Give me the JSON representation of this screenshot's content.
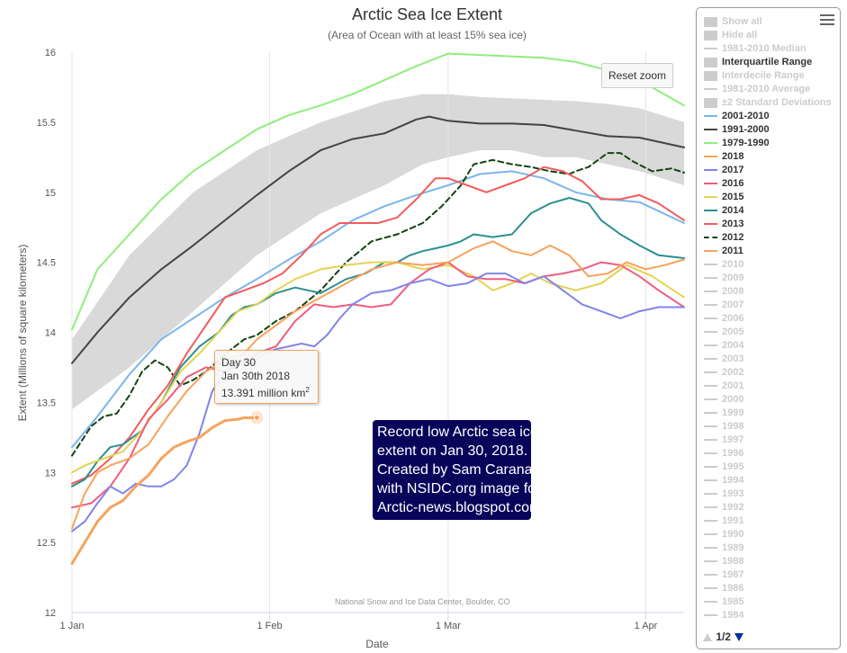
{
  "header": {
    "title": "Arctic Sea Ice Extent",
    "subtitle": "(Area of Ocean with at least 15% sea ice)"
  },
  "reset_zoom_label": "Reset zoom",
  "credits": "National Snow and Ice Data Center, Boulder, CO",
  "tooltip": {
    "day": "Day 30",
    "date": "Jan 30th 2018",
    "value": "13.391 million km",
    "unit_sup": "2"
  },
  "annotation": {
    "lines": [
      "Record low Arctic sea ice",
      "extent on Jan 30, 2018.",
      "Created by Sam Carana",
      "with NSIDC.org image for",
      "Arctic-news.blogspot.com"
    ]
  },
  "legend": {
    "items": [
      {
        "label": "Show all",
        "kind": "box",
        "color": "#cccccc",
        "active": false
      },
      {
        "label": "Hide all",
        "kind": "box",
        "color": "#cccccc",
        "active": false
      },
      {
        "label": "1981-2010 Median",
        "kind": "line",
        "color": "#cccccc",
        "active": false
      },
      {
        "label": "Interquartile Range",
        "kind": "box",
        "color": "#cccccc",
        "active": true
      },
      {
        "label": "Interdecile Range",
        "kind": "box",
        "color": "#cccccc",
        "active": false
      },
      {
        "label": "1981-2010 Average",
        "kind": "line",
        "color": "#cccccc",
        "active": false
      },
      {
        "label": "±2 Standard Deviations",
        "kind": "box",
        "color": "#cccccc",
        "active": false
      },
      {
        "label": "2001-2010",
        "kind": "line",
        "color": "#7cb5ec",
        "active": true
      },
      {
        "label": "1991-2000",
        "kind": "line",
        "color": "#434348",
        "active": true
      },
      {
        "label": "1979-1990",
        "kind": "line",
        "color": "#90ed7d",
        "active": true
      },
      {
        "label": "2018",
        "kind": "line",
        "color": "#f7a35c",
        "active": true
      },
      {
        "label": "2017",
        "kind": "line",
        "color": "#8085e9",
        "active": true
      },
      {
        "label": "2016",
        "kind": "line",
        "color": "#f15c80",
        "active": true
      },
      {
        "label": "2015",
        "kind": "line",
        "color": "#e4d354",
        "active": true
      },
      {
        "label": "2014",
        "kind": "line",
        "color": "#2b908f",
        "active": true
      },
      {
        "label": "2013",
        "kind": "line",
        "color": "#f45b5b",
        "active": true
      },
      {
        "label": "2012",
        "kind": "dash",
        "color": "#114411",
        "active": true
      },
      {
        "label": "2011",
        "kind": "line",
        "color": "#f7a35c",
        "active": true
      },
      {
        "label": "2010",
        "kind": "line",
        "color": "#cccccc",
        "active": false
      },
      {
        "label": "2009",
        "kind": "line",
        "color": "#cccccc",
        "active": false
      },
      {
        "label": "2008",
        "kind": "line",
        "color": "#cccccc",
        "active": false
      },
      {
        "label": "2007",
        "kind": "line",
        "color": "#cccccc",
        "active": false
      },
      {
        "label": "2006",
        "kind": "line",
        "color": "#cccccc",
        "active": false
      },
      {
        "label": "2005",
        "kind": "line",
        "color": "#cccccc",
        "active": false
      },
      {
        "label": "2004",
        "kind": "line",
        "color": "#cccccc",
        "active": false
      },
      {
        "label": "2003",
        "kind": "line",
        "color": "#cccccc",
        "active": false
      },
      {
        "label": "2002",
        "kind": "line",
        "color": "#cccccc",
        "active": false
      },
      {
        "label": "2001",
        "kind": "line",
        "color": "#cccccc",
        "active": false
      },
      {
        "label": "2000",
        "kind": "line",
        "color": "#cccccc",
        "active": false
      },
      {
        "label": "1999",
        "kind": "line",
        "color": "#cccccc",
        "active": false
      },
      {
        "label": "1998",
        "kind": "line",
        "color": "#cccccc",
        "active": false
      },
      {
        "label": "1997",
        "kind": "line",
        "color": "#cccccc",
        "active": false
      },
      {
        "label": "1996",
        "kind": "line",
        "color": "#cccccc",
        "active": false
      },
      {
        "label": "1995",
        "kind": "line",
        "color": "#cccccc",
        "active": false
      },
      {
        "label": "1994",
        "kind": "line",
        "color": "#cccccc",
        "active": false
      },
      {
        "label": "1993",
        "kind": "line",
        "color": "#cccccc",
        "active": false
      },
      {
        "label": "1992",
        "kind": "line",
        "color": "#cccccc",
        "active": false
      },
      {
        "label": "1991",
        "kind": "line",
        "color": "#cccccc",
        "active": false
      },
      {
        "label": "1990",
        "kind": "line",
        "color": "#cccccc",
        "active": false
      },
      {
        "label": "1989",
        "kind": "line",
        "color": "#cccccc",
        "active": false
      },
      {
        "label": "1988",
        "kind": "line",
        "color": "#cccccc",
        "active": false
      },
      {
        "label": "1987",
        "kind": "line",
        "color": "#cccccc",
        "active": false
      },
      {
        "label": "1986",
        "kind": "line",
        "color": "#cccccc",
        "active": false
      },
      {
        "label": "1985",
        "kind": "line",
        "color": "#cccccc",
        "active": false
      },
      {
        "label": "1984",
        "kind": "line",
        "color": "#cccccc",
        "active": false
      }
    ],
    "page": "1/2"
  },
  "chart_data": {
    "type": "line",
    "title": "Arctic Sea Ice Extent",
    "subtitle": "(Area of Ocean with at least 15% sea ice)",
    "xlabel": "Date",
    "ylabel": "Extent (Millions of square kilometers)",
    "xlim": [
      1,
      97
    ],
    "ylim": [
      12,
      16
    ],
    "yticks": [
      12,
      12.5,
      13,
      13.5,
      14,
      14.5,
      15,
      15.5,
      16
    ],
    "xticks": [
      {
        "x": 1,
        "label": "1 Jan"
      },
      {
        "x": 32,
        "label": "1 Feb"
      },
      {
        "x": 60,
        "label": "1 Mar"
      },
      {
        "x": 91,
        "label": "1 Apr"
      }
    ],
    "grid": "x",
    "legend_position": "right",
    "highlight": {
      "series": "2018",
      "x": 30,
      "y": 13.391
    },
    "band": {
      "name": "Interquartile Range",
      "color": "#d9d9d9",
      "x": [
        1,
        10,
        20,
        30,
        40,
        50,
        56,
        60,
        65,
        70,
        75,
        80,
        85,
        90,
        97
      ],
      "low": [
        13.45,
        13.75,
        14.15,
        14.55,
        14.85,
        15.05,
        15.2,
        15.25,
        15.3,
        15.3,
        15.25,
        15.25,
        15.2,
        15.15,
        15.05
      ],
      "high": [
        13.95,
        14.55,
        15.0,
        15.3,
        15.5,
        15.65,
        15.7,
        15.7,
        15.68,
        15.67,
        15.66,
        15.65,
        15.63,
        15.6,
        15.5
      ]
    },
    "series": [
      {
        "name": "1979-1990",
        "color": "#90ed7d",
        "dash": false,
        "x": [
          1,
          5,
          10,
          15,
          20,
          25,
          30,
          35,
          40,
          45,
          50,
          55,
          60,
          65,
          70,
          75,
          80,
          85,
          90,
          97
        ],
        "y": [
          14.02,
          14.45,
          14.7,
          14.95,
          15.15,
          15.3,
          15.45,
          15.55,
          15.62,
          15.7,
          15.8,
          15.9,
          15.99,
          15.98,
          15.97,
          15.96,
          15.93,
          15.87,
          15.8,
          15.62
        ]
      },
      {
        "name": "1991-2000",
        "color": "#434348",
        "dash": false,
        "x": [
          1,
          5,
          10,
          15,
          20,
          25,
          30,
          35,
          40,
          45,
          50,
          55,
          57,
          60,
          65,
          70,
          75,
          80,
          85,
          90,
          97
        ],
        "y": [
          13.78,
          14.0,
          14.25,
          14.45,
          14.62,
          14.8,
          14.98,
          15.15,
          15.3,
          15.38,
          15.42,
          15.52,
          15.54,
          15.51,
          15.49,
          15.49,
          15.48,
          15.44,
          15.4,
          15.39,
          15.32
        ]
      },
      {
        "name": "2001-2010",
        "color": "#7cb5ec",
        "dash": false,
        "x": [
          1,
          5,
          10,
          15,
          20,
          25,
          30,
          35,
          40,
          45,
          50,
          55,
          60,
          65,
          70,
          75,
          80,
          85,
          90,
          97
        ],
        "y": [
          13.18,
          13.4,
          13.7,
          13.95,
          14.1,
          14.25,
          14.38,
          14.52,
          14.65,
          14.8,
          14.9,
          14.98,
          15.05,
          15.13,
          15.15,
          15.1,
          15.0,
          14.95,
          14.93,
          14.78
        ]
      },
      {
        "name": "2012",
        "color": "#114411",
        "dash": true,
        "x": [
          1,
          4,
          6,
          8,
          10,
          12,
          14,
          16,
          18,
          20,
          22,
          24,
          26,
          28,
          30,
          33,
          36,
          40,
          44,
          48,
          52,
          56,
          59,
          62,
          64,
          67,
          70,
          73,
          76,
          79,
          80,
          82,
          85,
          87,
          89,
          92,
          95,
          97
        ],
        "y": [
          13.12,
          13.33,
          13.4,
          13.42,
          13.55,
          13.72,
          13.8,
          13.75,
          13.62,
          13.66,
          13.72,
          13.8,
          13.88,
          13.95,
          13.98,
          14.08,
          14.15,
          14.3,
          14.5,
          14.65,
          14.7,
          14.78,
          14.9,
          15.05,
          15.2,
          15.23,
          15.2,
          15.18,
          15.15,
          15.13,
          15.15,
          15.18,
          15.28,
          15.28,
          15.22,
          15.15,
          15.17,
          15.14
        ]
      },
      {
        "name": "2013",
        "color": "#f45b5b",
        "dash": false,
        "x": [
          1,
          4,
          7,
          10,
          13,
          16,
          19,
          22,
          25,
          28,
          31,
          34,
          37,
          40,
          43,
          46,
          49,
          52,
          55,
          58,
          60,
          63,
          66,
          69,
          72,
          75,
          78,
          81,
          84,
          87,
          90,
          93,
          97
        ],
        "y": [
          12.92,
          12.98,
          13.1,
          13.25,
          13.45,
          13.62,
          13.85,
          14.05,
          14.25,
          14.3,
          14.35,
          14.42,
          14.55,
          14.7,
          14.78,
          14.78,
          14.78,
          14.82,
          14.95,
          15.1,
          15.1,
          15.05,
          15.0,
          15.05,
          15.1,
          15.18,
          15.15,
          15.08,
          14.95,
          14.95,
          14.98,
          14.92,
          14.8
        ]
      },
      {
        "name": "2014",
        "color": "#2b908f",
        "dash": false,
        "x": [
          1,
          3,
          5,
          7,
          9,
          12,
          15,
          18,
          21,
          24,
          26,
          28,
          30,
          33,
          36,
          40,
          44,
          47,
          50,
          52,
          54,
          56,
          58,
          60,
          62,
          64,
          67,
          70,
          73,
          76,
          79,
          82,
          84,
          87,
          90,
          93,
          97
        ],
        "y": [
          12.9,
          12.95,
          13.08,
          13.18,
          13.2,
          13.3,
          13.5,
          13.75,
          13.9,
          14.0,
          14.12,
          14.18,
          14.2,
          14.28,
          14.32,
          14.28,
          14.38,
          14.42,
          14.5,
          14.5,
          14.55,
          14.58,
          14.6,
          14.62,
          14.65,
          14.7,
          14.68,
          14.7,
          14.85,
          14.92,
          14.96,
          14.92,
          14.8,
          14.7,
          14.62,
          14.55,
          14.53
        ]
      },
      {
        "name": "2015",
        "color": "#e4d354",
        "dash": false,
        "x": [
          1,
          3,
          6,
          9,
          12,
          15,
          18,
          21,
          24,
          27,
          30,
          33,
          36,
          40,
          44,
          48,
          52,
          56,
          60,
          64,
          67,
          70,
          73,
          76,
          80,
          84,
          88,
          92,
          97
        ],
        "y": [
          13.0,
          13.05,
          13.1,
          13.15,
          13.3,
          13.5,
          13.72,
          13.85,
          14.0,
          14.15,
          14.2,
          14.3,
          14.38,
          14.45,
          14.48,
          14.5,
          14.5,
          14.45,
          14.48,
          14.4,
          14.3,
          14.35,
          14.42,
          14.35,
          14.3,
          14.35,
          14.48,
          14.4,
          14.25
        ]
      },
      {
        "name": "2016",
        "color": "#f15c80",
        "dash": false,
        "x": [
          1,
          4,
          7,
          10,
          13,
          16,
          19,
          22,
          25,
          28,
          30,
          33,
          36,
          39,
          42,
          45,
          48,
          51,
          54,
          57,
          60,
          63,
          66,
          69,
          72,
          75,
          78,
          81,
          84,
          87,
          90,
          93,
          97
        ],
        "y": [
          12.75,
          12.78,
          12.9,
          13.1,
          13.38,
          13.52,
          13.68,
          13.75,
          13.72,
          13.78,
          13.85,
          13.9,
          14.08,
          14.2,
          14.18,
          14.2,
          14.18,
          14.2,
          14.35,
          14.45,
          14.5,
          14.4,
          14.38,
          14.38,
          14.35,
          14.4,
          14.42,
          14.45,
          14.5,
          14.48,
          14.4,
          14.3,
          14.18
        ]
      },
      {
        "name": "2017",
        "color": "#8085e9",
        "dash": false,
        "x": [
          1,
          3,
          5,
          7,
          9,
          11,
          13,
          15,
          17,
          19,
          21,
          23,
          25,
          27,
          29,
          31,
          33,
          35,
          37,
          39,
          41,
          43,
          45,
          48,
          51,
          54,
          57,
          60,
          63,
          66,
          69,
          72,
          75,
          78,
          81,
          84,
          87,
          90,
          93,
          97
        ],
        "y": [
          12.58,
          12.65,
          12.78,
          12.9,
          12.85,
          12.92,
          12.9,
          12.9,
          12.95,
          13.05,
          13.28,
          13.58,
          13.72,
          13.8,
          13.78,
          13.84,
          13.88,
          13.9,
          13.92,
          13.9,
          13.98,
          14.1,
          14.2,
          14.28,
          14.3,
          14.35,
          14.38,
          14.33,
          14.35,
          14.42,
          14.42,
          14.35,
          14.4,
          14.3,
          14.2,
          14.15,
          14.1,
          14.15,
          14.18,
          14.18
        ]
      },
      {
        "name": "2011",
        "color": "#f7a35c",
        "dash": false,
        "x": [
          1,
          3,
          5,
          7,
          10,
          13,
          16,
          19,
          22,
          25,
          28,
          30,
          33,
          36,
          40,
          44,
          48,
          52,
          56,
          60,
          64,
          67,
          70,
          73,
          76,
          79,
          82,
          85,
          88,
          91,
          94,
          97
        ],
        "y": [
          12.6,
          12.85,
          13.0,
          13.05,
          13.1,
          13.2,
          13.4,
          13.58,
          13.72,
          13.8,
          13.85,
          13.95,
          14.05,
          14.15,
          14.25,
          14.35,
          14.45,
          14.5,
          14.48,
          14.5,
          14.6,
          14.65,
          14.58,
          14.55,
          14.62,
          14.55,
          14.4,
          14.42,
          14.5,
          14.45,
          14.48,
          14.52
        ]
      },
      {
        "name": "2018",
        "color": "#f7a35c",
        "dash": false,
        "width": 3,
        "x": [
          1,
          3,
          5,
          7,
          9,
          11,
          13,
          15,
          17,
          19,
          21,
          23,
          25,
          27,
          28,
          30
        ],
        "y": [
          12.35,
          12.5,
          12.65,
          12.75,
          12.8,
          12.9,
          12.98,
          13.1,
          13.18,
          13.22,
          13.25,
          13.32,
          13.37,
          13.38,
          13.39,
          13.391
        ]
      }
    ]
  }
}
